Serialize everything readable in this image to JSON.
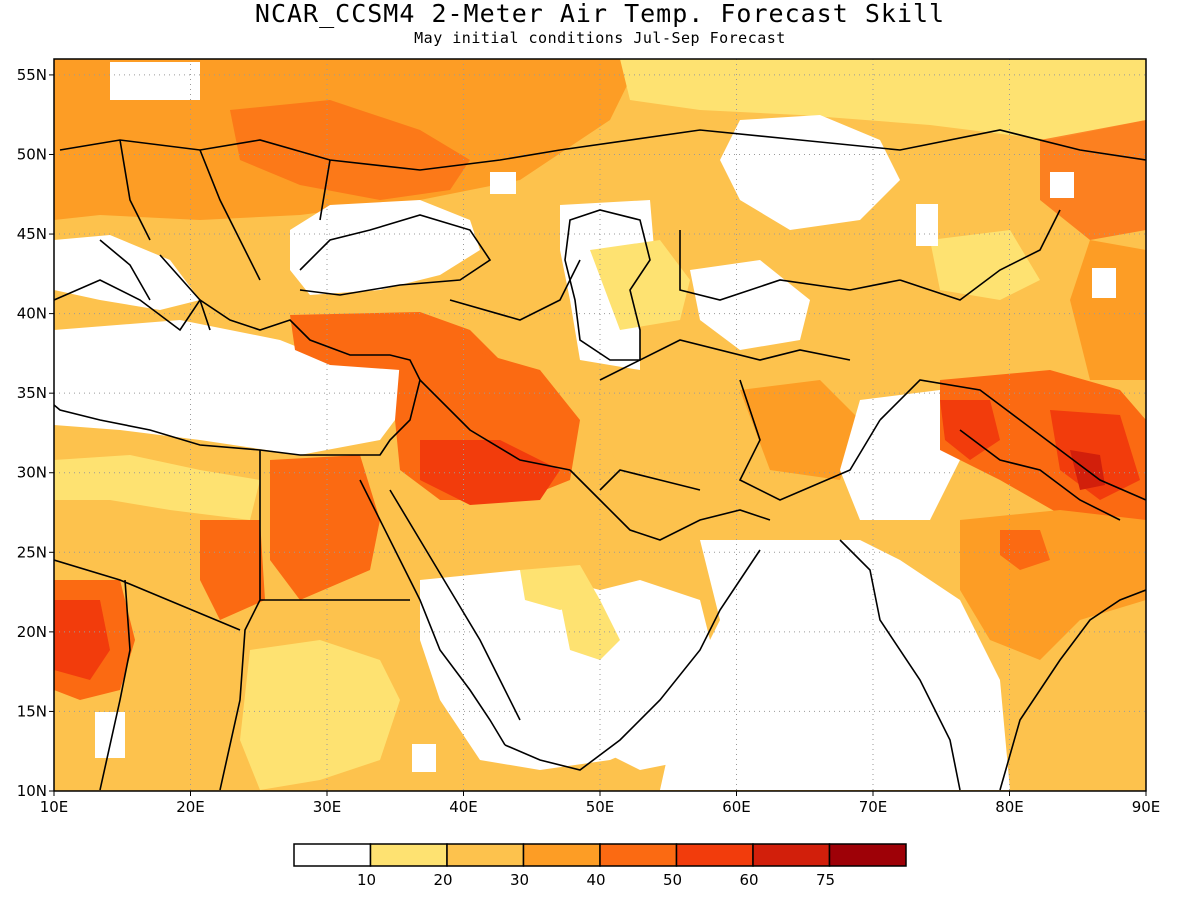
{
  "title": "NCAR_CCSM4 2-Meter Air Temp. Forecast Skill",
  "subtitle": "May initial conditions  Jul-Sep Forecast",
  "colors": {
    "frame": "#000000",
    "grid": "#9a9a9a",
    "coast": "#000000",
    "bins": [
      "#ffffff",
      "#fee271",
      "#fdc24d",
      "#fd9d25",
      "#fb6a12",
      "#f23c0c",
      "#d21f0b",
      "#9e0107"
    ]
  },
  "map": {
    "lon_range": [
      10,
      90
    ],
    "lat_range": [
      10,
      56
    ],
    "lon_ticks": [
      "10E",
      "20E",
      "30E",
      "40E",
      "50E",
      "60E",
      "70E",
      "80E",
      "90E"
    ],
    "lat_ticks": [
      "10N",
      "15N",
      "20N",
      "25N",
      "30N",
      "35N",
      "40N",
      "45N",
      "50N",
      "55N"
    ],
    "grid": "dotted"
  },
  "colorbar": {
    "labels": [
      "10",
      "20",
      "30",
      "40",
      "50",
      "60",
      "75"
    ]
  }
}
